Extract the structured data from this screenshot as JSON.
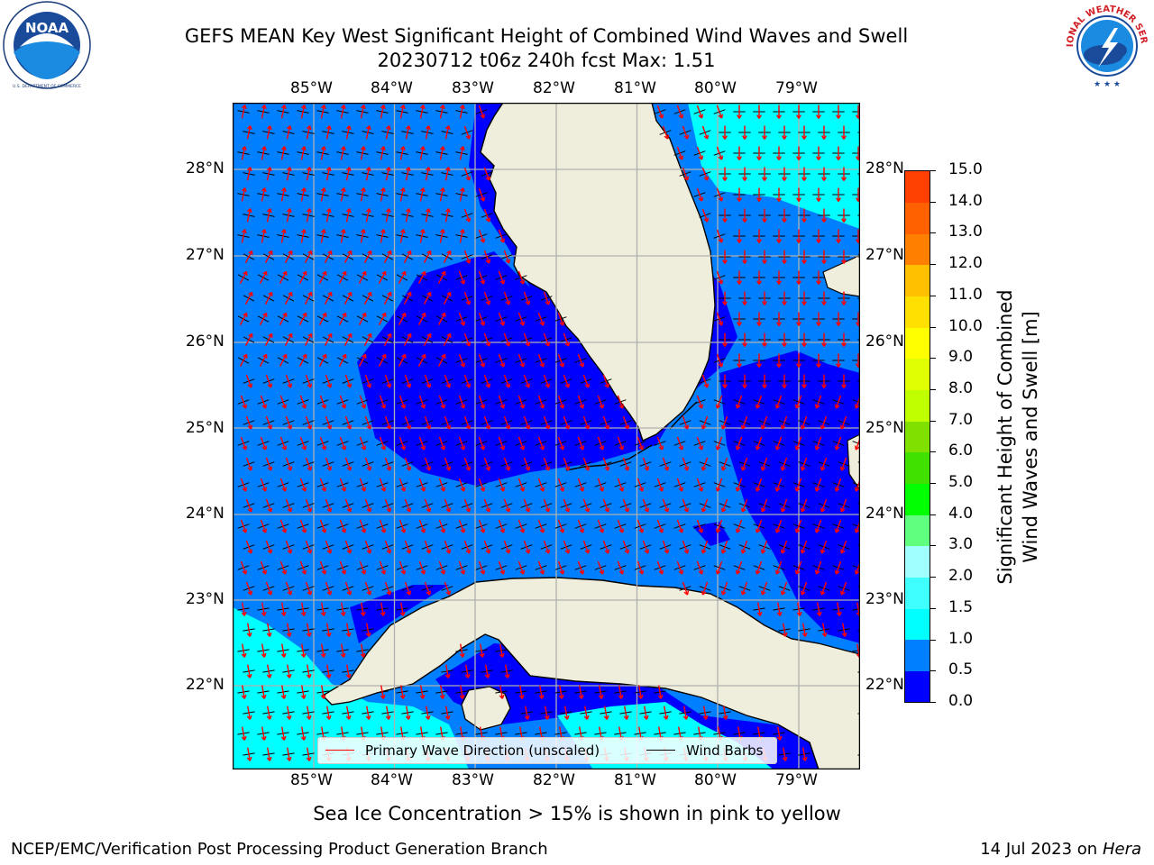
{
  "header": {
    "title_line1": "GEFS MEAN Key West Significant Height of Combined Wind Waves and Swell",
    "title_line2": "20230712 t06z 240h fcst   Max: 1.51"
  },
  "logos": {
    "left": "NOAA",
    "left_ring_text": "NATIONAL OCEANIC AND ATMOSPHERIC ADMINISTRATION · U.S. DEPARTMENT OF COMMERCE",
    "right_ring_text": "NATIONAL WEATHER SERVICE"
  },
  "map": {
    "lon_ticks": [
      "85°W",
      "84°W",
      "83°W",
      "82°W",
      "81°W",
      "80°W",
      "79°W"
    ],
    "lat_ticks": [
      "28°N",
      "27°N",
      "26°N",
      "25°N",
      "24°N",
      "23°N",
      "22°N"
    ],
    "land_color": "#efeedc",
    "grid_color": "#b0b0b0"
  },
  "colorbar": {
    "title_line1": "Significant Height of Combined",
    "title_line2": "Wind Waves and Swell [m]",
    "labels": [
      "15.0",
      "14.0",
      "13.0",
      "12.0",
      "11.0",
      "10.0",
      "9.0",
      "8.0",
      "7.0",
      "6.0",
      "5.0",
      "4.0",
      "3.0",
      "2.0",
      "1.5",
      "1.0",
      "0.5",
      "0.0"
    ],
    "colors_bottom_to_top": [
      "#0000ff",
      "#0080ff",
      "#00ffff",
      "#40ffff",
      "#a0ffff",
      "#60ff80",
      "#00ff00",
      "#40e000",
      "#80e000",
      "#c0ff00",
      "#e0ff00",
      "#ffff00",
      "#ffe000",
      "#ffc000",
      "#ff8000",
      "#ff6000",
      "#ff4000"
    ]
  },
  "legend": {
    "wave_label": "Primary Wave Direction (unscaled)",
    "wind_label": "Wind Barbs",
    "wave_color": "#ff0000",
    "wind_color": "#000000"
  },
  "footer": {
    "sea_ice_note": "Sea Ice Concentration > 15% is shown in pink to yellow",
    "left": "NCEP/EMC/Verification Post Processing Product Generation Branch",
    "right_date": "14 Jul 2023 on",
    "right_host": "Hera"
  }
}
